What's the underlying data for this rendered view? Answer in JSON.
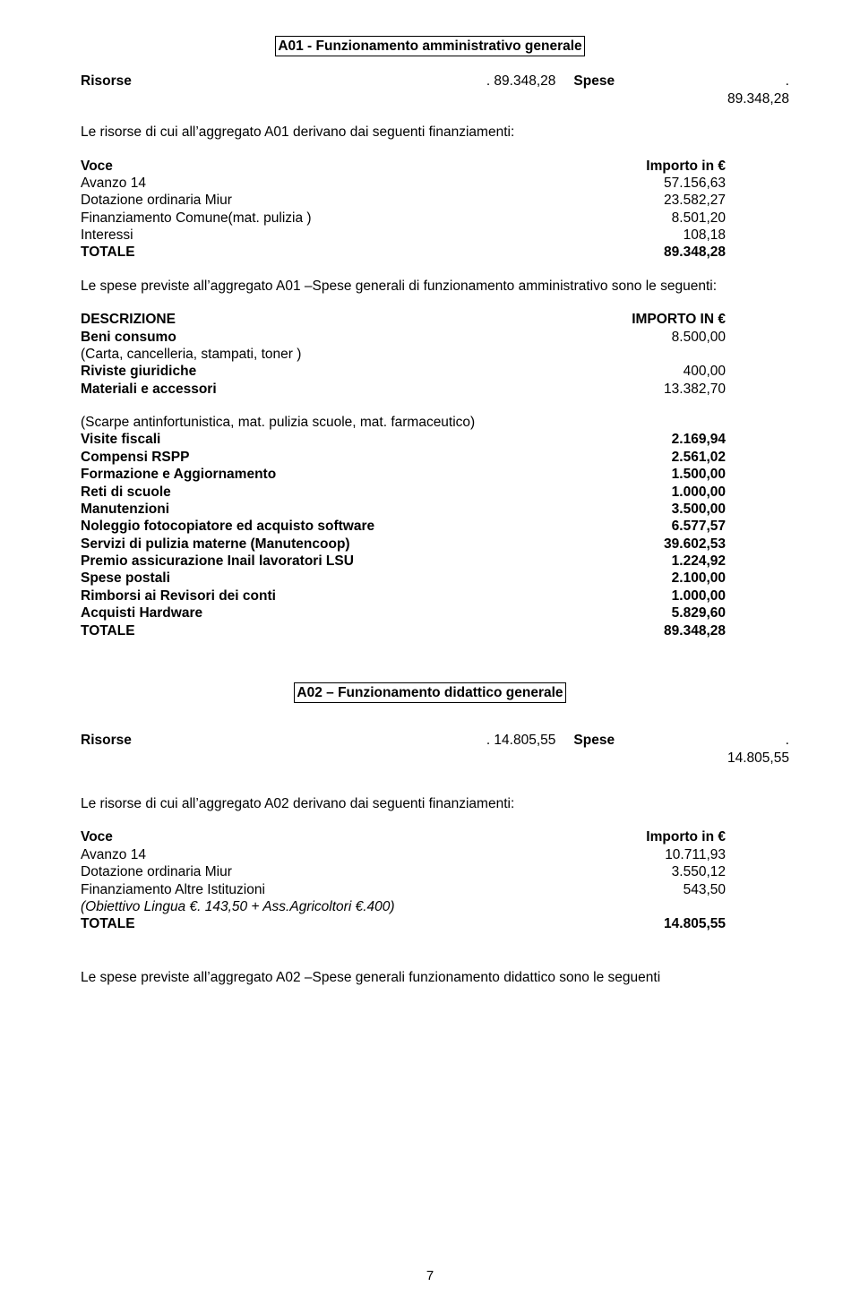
{
  "a01": {
    "title": "A01 - Funzionamento amministrativo generale",
    "summary": {
      "risorse_label": "Risorse",
      "risorse_val": ". 89.348,28",
      "spese_label": "Spese",
      "spese_val": ". 89.348,28"
    },
    "intro": "Le risorse di cui all’aggregato A01  derivano dai seguenti finanziamenti:",
    "finanz": {
      "head_left": "Voce",
      "head_right": "Importo in €",
      "rows": [
        {
          "l": "Avanzo 14",
          "r": "57.156,63"
        },
        {
          "l": "Dotazione ordinaria Miur",
          "r": "23.582,27"
        },
        {
          "l": "Finanziamento Comune(mat. pulizia )",
          "r": "8.501,20"
        },
        {
          "l": "Interessi",
          "r": "108,18"
        }
      ],
      "total_l": "TOTALE",
      "total_r": "89.348,28"
    },
    "spese_intro": "Le spese previste all’aggregato A01 –Spese generali di funzionamento amministrativo sono le seguenti:",
    "spese": {
      "head_left": "DESCRIZIONE",
      "head_right": "IMPORTO IN €",
      "group1": [
        {
          "l": "Beni consumo",
          "r": "8.500,00",
          "bold": true
        },
        {
          "l": "(Carta, cancelleria, stampati, toner )",
          "r": "",
          "bold": false
        },
        {
          "l": "Riviste giuridiche",
          "r": "400,00",
          "bold": true
        },
        {
          "l": "Materiali e accessori",
          "r": "13.382,70",
          "bold": true
        }
      ],
      "group2_note": "(Scarpe antinfortunistica, mat. pulizia scuole, mat. farmaceutico)",
      "group2": [
        {
          "l": "Visite fiscali",
          "r": "2.169,94"
        },
        {
          "l": "Compensi RSPP",
          "r": "2.561,02"
        },
        {
          "l": "Formazione e Aggiornamento",
          "r": "1.500,00"
        },
        {
          "l": "Reti di scuole",
          "r": "1.000,00"
        },
        {
          "l": "Manutenzioni",
          "r": "3.500,00"
        },
        {
          "l": "Noleggio fotocopiatore ed acquisto software",
          "r": "6.577,57"
        },
        {
          "l": "Servizi di pulizia materne (Manutencoop)",
          "r": "39.602,53"
        },
        {
          "l": "Premio assicurazione Inail lavoratori LSU",
          "r": "1.224,92"
        },
        {
          "l": "Spese postali",
          "r": "2.100,00"
        },
        {
          "l": "Rimborsi ai Revisori dei conti",
          "r": "1.000,00"
        },
        {
          "l": "Acquisti Hardware",
          "r": "5.829,60"
        },
        {
          "l": "TOTALE",
          "r": "89.348,28"
        }
      ]
    }
  },
  "a02": {
    "title": "A02 – Funzionamento didattico generale",
    "summary": {
      "risorse_label": "Risorse",
      "risorse_val": ". 14.805,55",
      "spese_label": "Spese",
      "spese_val": ". 14.805,55"
    },
    "intro": "Le risorse di cui all’aggregato A02  derivano dai seguenti finanziamenti:",
    "finanz": {
      "head_left": "Voce",
      "head_right": "Importo in €",
      "rows": [
        {
          "l": "Avanzo 14",
          "r": "10.711,93"
        },
        {
          "l": "Dotazione ordinaria Miur",
          "r": "3.550,12"
        },
        {
          "l": "Finanziamento Altre Istituzioni",
          "r": "543,50"
        }
      ],
      "note": "(Obiettivo Lingua €. 143,50 + Ass.Agricoltori €.400)",
      "total_l": "TOTALE",
      "total_r": "14.805,55"
    },
    "closing": "Le spese previste all’aggregato A02 –Spese generali funzionamento didattico  sono le seguenti"
  },
  "page_number": "7"
}
